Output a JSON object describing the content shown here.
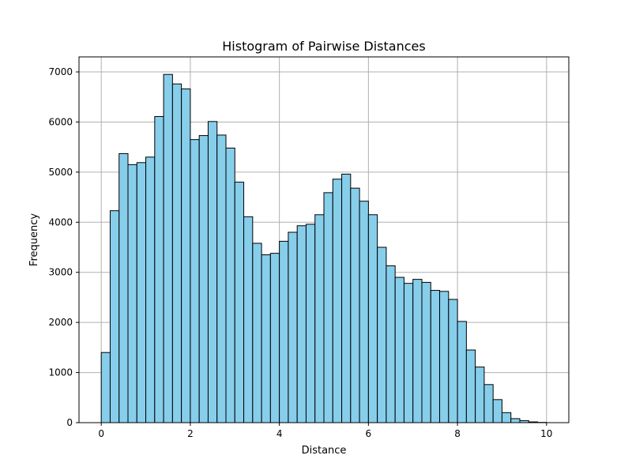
{
  "chart_data": {
    "type": "bar",
    "title": "Histogram of Pairwise Distances",
    "xlabel": "Distance",
    "ylabel": "Frequency",
    "bin_start": 0,
    "bin_width": 0.2,
    "values": [
      1400,
      4230,
      5370,
      5150,
      5190,
      5300,
      6110,
      6950,
      6760,
      6660,
      5650,
      5730,
      6010,
      5740,
      5480,
      4800,
      4110,
      3580,
      3350,
      3380,
      3620,
      3800,
      3930,
      3960,
      4150,
      4590,
      4860,
      4960,
      4680,
      4420,
      4150,
      3500,
      3130,
      2900,
      2780,
      2860,
      2800,
      2640,
      2620,
      2460,
      2020,
      1450,
      1110,
      760,
      460,
      200,
      80,
      40,
      15,
      5
    ],
    "xlim": [
      -0.5,
      10.5
    ],
    "ylim": [
      0,
      7300
    ],
    "xticks": [
      0,
      2,
      4,
      6,
      8,
      10
    ],
    "xtick_labels": [
      "0",
      "2",
      "4",
      "6",
      "8",
      "10"
    ],
    "yticks": [
      0,
      1000,
      2000,
      3000,
      4000,
      5000,
      6000,
      7000
    ],
    "ytick_labels": [
      "0",
      "1000",
      "2000",
      "3000",
      "4000",
      "5000",
      "6000",
      "7000"
    ],
    "grid": true,
    "colors": {
      "bar_fill": "#87ceeb",
      "bar_edge": "#000000",
      "grid": "#b0b0b0",
      "axes": "#000000"
    }
  }
}
